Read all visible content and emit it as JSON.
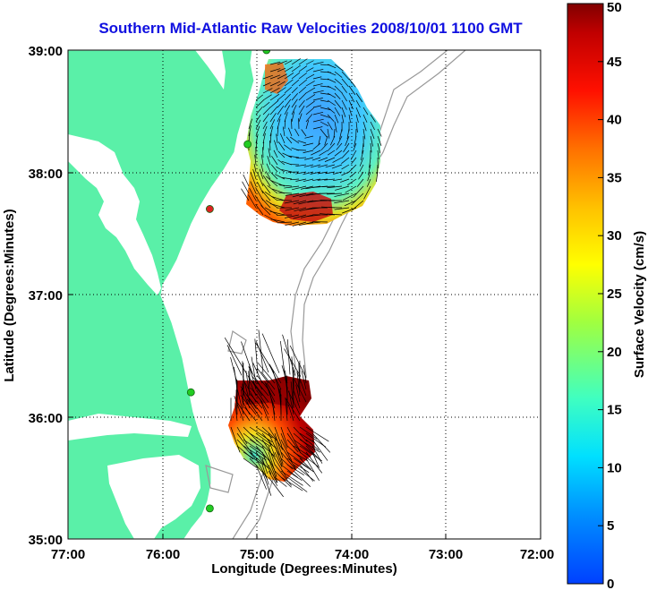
{
  "title": "Southern Mid-Atlantic Raw Velocities 2008/10/01 1100 GMT",
  "map": {
    "xlabel": "Longitude (Degrees:Minutes)",
    "ylabel": "Latitude (Degrees:Minutes)",
    "x_ticks": [
      "77:00",
      "76:00",
      "75:00",
      "74:00",
      "73:00",
      "72:00"
    ],
    "y_ticks": [
      "39:00",
      "38:00",
      "37:00",
      "36:00",
      "35:00"
    ],
    "grid": "dotted",
    "colors": {
      "land": "#5af0a8",
      "ocean": "#ffffff",
      "bathymetry": "#999999",
      "station_active": "#22cc22",
      "station_inactive": "#dd2222",
      "vectors": "#000000"
    }
  },
  "colorbar": {
    "label": "Surface Velocity (cm/s)",
    "ticks": [
      "0",
      "5",
      "10",
      "15",
      "20",
      "25",
      "30",
      "35",
      "40",
      "45",
      "50"
    ],
    "range": [
      0,
      50
    ]
  },
  "stations": [
    {
      "lon": -74.9,
      "lat": 39.0,
      "status": "active"
    },
    {
      "lon": -75.1,
      "lat": 38.23,
      "status": "active"
    },
    {
      "lon": -75.5,
      "lat": 37.7,
      "status": "inactive"
    },
    {
      "lon": -75.7,
      "lat": 36.2,
      "status": "active"
    },
    {
      "lon": -75.5,
      "lat": 35.25,
      "status": "active"
    }
  ]
}
